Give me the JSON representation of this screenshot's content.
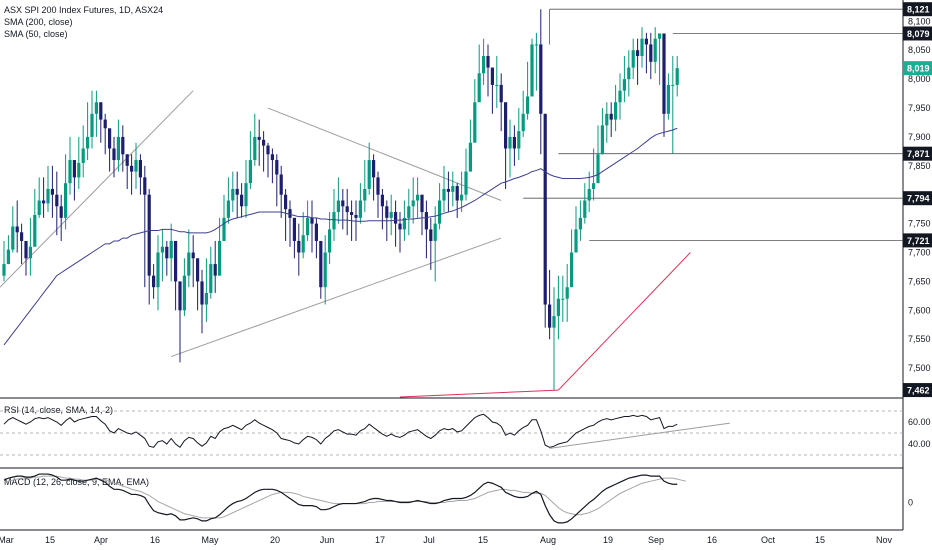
{
  "legend": {
    "title": "ASX SPI 200 Index Futures, 1D, ASX24",
    "sma200": "SMA (200, close)",
    "sma50": "SMA (50, close)",
    "rsi": "RSI (14, close, SMA, 14, 2)",
    "macd": "MACD (12, 26, close, 9, EMA, EMA)"
  },
  "colors": {
    "up": "#089981",
    "down": "#1e1e6e",
    "sma50": "#3f3f8f",
    "sma200": "#e0315a",
    "price_tag": "#22ab94",
    "level_tag": "#131722",
    "axis_line": "#131722",
    "trendline": "#9e9e9e",
    "rsi_line": "#131722",
    "macd_line": "#131722",
    "signal_line": "#a6a6a6"
  },
  "chart_data": {
    "type": "candlestick",
    "main_ylim": [
      7450,
      8130
    ],
    "y_ticks": [
      "8,100",
      "8,050",
      "8,000",
      "7,950",
      "7,900",
      "7,850",
      "7,750",
      "7,700",
      "7,650",
      "7,600",
      "7,550",
      "7,500"
    ],
    "x_ticks": [
      "Mar",
      "15",
      "Apr",
      "16",
      "May",
      "20",
      "Jun",
      "17",
      "Jul",
      "15",
      "Aug",
      "19",
      "Sep",
      "16",
      "Oct",
      "15",
      "Nov"
    ],
    "level_labels": [
      {
        "value": 8121,
        "label": "8,121",
        "kind": "level"
      },
      {
        "value": 8079,
        "label": "8,079",
        "kind": "level"
      },
      {
        "value": 8019,
        "label": "8,019",
        "kind": "price"
      },
      {
        "value": 7871,
        "label": "7,871",
        "kind": "level"
      },
      {
        "value": 7794,
        "label": "7,794",
        "kind": "level"
      },
      {
        "value": 7721,
        "label": "7,721",
        "kind": "level"
      },
      {
        "value": 7462,
        "label": "7,462",
        "kind": "level"
      }
    ],
    "closes": [
      7680,
      7705,
      7745,
      7735,
      7720,
      7690,
      7710,
      7765,
      7790,
      7785,
      7810,
      7800,
      7780,
      7760,
      7820,
      7860,
      7830,
      7855,
      7880,
      7900,
      7940,
      7960,
      7930,
      7915,
      7880,
      7860,
      7900,
      7870,
      7850,
      7840,
      7860,
      7830,
      7800,
      7660,
      7640,
      7700,
      7710,
      7690,
      7720,
      7650,
      7600,
      7660,
      7700,
      7690,
      7650,
      7610,
      7630,
      7680,
      7660,
      7720,
      7760,
      7790,
      7810,
      7800,
      7780,
      7820,
      7860,
      7900,
      7895,
      7885,
      7870,
      7860,
      7835,
      7800,
      7775,
      7760,
      7720,
      7700,
      7730,
      7760,
      7750,
      7720,
      7640,
      7700,
      7740,
      7770,
      7790,
      7780,
      7770,
      7765,
      7760,
      7790,
      7810,
      7860,
      7830,
      7800,
      7780,
      7760,
      7770,
      7750,
      7740,
      7760,
      7780,
      7790,
      7800,
      7770,
      7740,
      7720,
      7750,
      7790,
      7810,
      7805,
      7815,
      7790,
      7800,
      7840,
      7890,
      7960,
      8010,
      8040,
      8020,
      7990,
      7990,
      7960,
      7880,
      7900,
      7880,
      7910,
      7940,
      7970,
      8060,
      8060,
      7940,
      7610,
      7570,
      7590,
      7620,
      7620,
      7640,
      7700,
      7740,
      7760,
      7790,
      7810,
      7820,
      7870,
      7920,
      7940,
      7930,
      7960,
      7980,
      8000,
      8020,
      8050,
      8040,
      8070,
      8060,
      8030,
      8070,
      8079,
      7940,
      7990,
      7990,
      8019
    ],
    "highs": [
      7720,
      7730,
      7780,
      7790,
      7750,
      7720,
      7760,
      7810,
      7830,
      7830,
      7850,
      7850,
      7840,
      7800,
      7870,
      7900,
      7860,
      7900,
      7920,
      7960,
      7980,
      7980,
      7960,
      7940,
      7900,
      7900,
      7930,
      7920,
      7870,
      7870,
      7890,
      7870,
      7850,
      7810,
      7680,
      7730,
      7740,
      7720,
      7750,
      7710,
      7650,
      7690,
      7740,
      7730,
      7690,
      7670,
      7690,
      7710,
      7720,
      7760,
      7800,
      7830,
      7840,
      7840,
      7820,
      7860,
      7910,
      7940,
      7930,
      7910,
      7890,
      7880,
      7870,
      7850,
      7810,
      7790,
      7760,
      7750,
      7770,
      7790,
      7790,
      7760,
      7720,
      7730,
      7770,
      7810,
      7830,
      7810,
      7810,
      7790,
      7790,
      7820,
      7860,
      7890,
      7870,
      7840,
      7810,
      7790,
      7800,
      7790,
      7770,
      7790,
      7810,
      7830,
      7830,
      7800,
      7790,
      7760,
      7780,
      7820,
      7850,
      7840,
      7840,
      7820,
      7840,
      7880,
      7930,
      8000,
      8060,
      8070,
      8060,
      8020,
      8040,
      8010,
      7960,
      7930,
      7920,
      7950,
      7980,
      8030,
      8070,
      8080,
      8121,
      7940,
      7670,
      7640,
      7660,
      7660,
      7680,
      7740,
      7780,
      7790,
      7820,
      7840,
      7880,
      7920,
      7950,
      7960,
      7960,
      7990,
      8010,
      8040,
      8050,
      8070,
      8070,
      8090,
      8080,
      8080,
      8090,
      8079,
      8000,
      8010,
      8040,
      8040
    ],
    "lows": [
      7650,
      7680,
      7700,
      7700,
      7680,
      7660,
      7660,
      7720,
      7760,
      7760,
      7770,
      7760,
      7730,
      7720,
      7740,
      7800,
      7790,
      7810,
      7830,
      7860,
      7880,
      7900,
      7890,
      7870,
      7840,
      7830,
      7840,
      7840,
      7810,
      7800,
      7810,
      7800,
      7640,
      7610,
      7620,
      7600,
      7650,
      7660,
      7650,
      7600,
      7510,
      7590,
      7640,
      7640,
      7600,
      7560,
      7580,
      7620,
      7630,
      7660,
      7720,
      7750,
      7770,
      7760,
      7760,
      7760,
      7810,
      7850,
      7850,
      7840,
      7830,
      7820,
      7780,
      7760,
      7720,
      7710,
      7690,
      7660,
      7690,
      7720,
      7700,
      7690,
      7620,
      7610,
      7680,
      7720,
      7750,
      7740,
      7730,
      7720,
      7720,
      7750,
      7770,
      7800,
      7790,
      7760,
      7740,
      7720,
      7730,
      7710,
      7700,
      7720,
      7730,
      7750,
      7760,
      7730,
      7690,
      7670,
      7650,
      7740,
      7770,
      7770,
      7780,
      7760,
      7770,
      7790,
      7850,
      7920,
      7970,
      7990,
      7970,
      7940,
      7950,
      7910,
      7810,
      7830,
      7850,
      7860,
      7900,
      7930,
      7990,
      7980,
      7870,
      7570,
      7550,
      7462,
      7550,
      7580,
      7580,
      7640,
      7700,
      7720,
      7750,
      7770,
      7790,
      7820,
      7870,
      7890,
      7900,
      7910,
      7930,
      7960,
      7970,
      8000,
      7990,
      8020,
      8010,
      8000,
      8010,
      7990,
      7900,
      7930,
      7871,
      7970
    ],
    "sma50_values": [
      7540,
      7550,
      7560,
      7570,
      7580,
      7590,
      7600,
      7610,
      7620,
      7630,
      7640,
      7650,
      7660,
      7665,
      7670,
      7675,
      7680,
      7685,
      7690,
      7695,
      7700,
      7705,
      7710,
      7715,
      7715,
      7720,
      7720,
      7725,
      7725,
      7730,
      7732,
      7734,
      7736,
      7738,
      7738,
      7738,
      7740,
      7740,
      7740,
      7738,
      7736,
      7736,
      7734,
      7734,
      7734,
      7734,
      7734,
      7736,
      7740,
      7745,
      7750,
      7755,
      7758,
      7760,
      7762,
      7764,
      7766,
      7768,
      7770,
      7770,
      7770,
      7770,
      7770,
      7770,
      7768,
      7766,
      7764,
      7762,
      7762,
      7762,
      7760,
      7760,
      7758,
      7758,
      7757,
      7757,
      7756,
      7756,
      7756,
      7755,
      7754,
      7754,
      7754,
      7755,
      7755,
      7755,
      7755,
      7755,
      7755,
      7756,
      7756,
      7757,
      7758,
      7758,
      7759,
      7760,
      7760,
      7762,
      7763,
      7765,
      7768,
      7770,
      7772,
      7775,
      7778,
      7782,
      7786,
      7790,
      7795,
      7800,
      7805,
      7810,
      7815,
      7820,
      7822,
      7825,
      7828,
      7830,
      7833,
      7836,
      7840,
      7842,
      7845,
      7840,
      7835,
      7832,
      7830,
      7828,
      7828,
      7828,
      7828,
      7828,
      7829,
      7830,
      7832,
      7835,
      7840,
      7845,
      7850,
      7855,
      7860,
      7865,
      7870,
      7875,
      7880,
      7886,
      7892,
      7898,
      7903,
      7906,
      7908,
      7910,
      7912,
      7915
    ],
    "sma200_start": [
      126,
      7462
    ],
    "sma200_end": [
      156,
      7700
    ],
    "rsi_values": [
      58,
      62,
      64,
      62,
      60,
      58,
      60,
      63,
      64,
      63,
      64,
      62,
      60,
      57,
      61,
      64,
      60,
      62,
      63,
      64,
      65,
      65,
      61,
      58,
      52,
      50,
      54,
      52,
      50,
      49,
      51,
      48,
      45,
      38,
      37,
      42,
      43,
      40,
      45,
      40,
      37,
      43,
      46,
      45,
      41,
      38,
      41,
      47,
      45,
      51,
      54,
      55,
      57,
      55,
      53,
      57,
      59,
      62,
      59,
      57,
      55,
      53,
      50,
      45,
      44,
      43,
      41,
      40,
      44,
      47,
      46,
      44,
      40,
      45,
      48,
      52,
      53,
      51,
      49,
      49,
      48,
      52,
      54,
      58,
      55,
      52,
      49,
      47,
      49,
      47,
      46,
      48,
      51,
      52,
      53,
      50,
      47,
      45,
      48,
      52,
      54,
      53,
      54,
      51,
      52,
      56,
      60,
      64,
      66,
      67,
      64,
      60,
      59,
      56,
      48,
      50,
      48,
      52,
      55,
      57,
      62,
      62,
      52,
      39,
      37,
      38,
      40,
      41,
      42,
      46,
      50,
      52,
      54,
      56,
      57,
      60,
      62,
      63,
      62,
      63,
      64,
      65,
      65,
      66,
      65,
      66,
      65,
      62,
      63,
      64,
      54,
      56,
      56,
      58
    ],
    "rsi_bands": [
      70,
      50,
      30
    ],
    "rsi_ticks": [
      "60.00",
      "40.00"
    ],
    "macd_values": [
      22,
      24,
      25,
      26,
      26,
      25,
      25,
      26,
      28,
      28,
      28,
      27,
      25,
      22,
      22,
      23,
      22,
      21,
      21,
      22,
      23,
      24,
      22,
      20,
      16,
      13,
      13,
      12,
      10,
      8,
      8,
      7,
      5,
      -2,
      -8,
      -10,
      -11,
      -12,
      -11,
      -13,
      -17,
      -17,
      -16,
      -15,
      -16,
      -18,
      -18,
      -16,
      -15,
      -12,
      -8,
      -4,
      -1,
      1,
      2,
      4,
      7,
      10,
      12,
      13,
      13,
      13,
      12,
      10,
      7,
      4,
      1,
      -2,
      -3,
      -3,
      -3,
      -4,
      -7,
      -7,
      -6,
      -4,
      -2,
      -1,
      -1,
      -1,
      -1,
      0,
      1,
      3,
      4,
      4,
      3,
      2,
      2,
      1,
      0,
      0,
      0,
      1,
      2,
      1,
      0,
      -1,
      -1,
      0,
      2,
      3,
      4,
      4,
      4,
      5,
      7,
      10,
      14,
      18,
      20,
      19,
      17,
      15,
      10,
      8,
      6,
      5,
      5,
      6,
      9,
      11,
      8,
      -3,
      -12,
      -18,
      -20,
      -20,
      -19,
      -16,
      -12,
      -8,
      -4,
      0,
      3,
      7,
      11,
      14,
      16,
      18,
      20,
      22,
      24,
      25,
      26,
      27,
      27,
      26,
      26,
      26,
      21,
      19,
      18,
      18
    ],
    "signal_values": [
      20,
      21,
      22,
      23,
      24,
      24,
      24,
      25,
      25,
      26,
      26,
      26,
      26,
      25,
      24,
      24,
      23,
      23,
      22,
      22,
      22,
      23,
      23,
      22,
      21,
      19,
      18,
      16,
      15,
      13,
      12,
      11,
      9,
      7,
      4,
      1,
      -1,
      -3,
      -5,
      -7,
      -9,
      -11,
      -12,
      -13,
      -14,
      -15,
      -15,
      -15,
      -15,
      -15,
      -14,
      -12,
      -10,
      -8,
      -6,
      -4,
      -2,
      0,
      2,
      4,
      6,
      8,
      9,
      10,
      10,
      10,
      9,
      8,
      6,
      5,
      4,
      3,
      2,
      1,
      0,
      -1,
      -1,
      -1,
      -1,
      -1,
      -1,
      -1,
      -1,
      0,
      0,
      1,
      1,
      1,
      1,
      1,
      1,
      1,
      1,
      1,
      1,
      1,
      1,
      0,
      0,
      0,
      0,
      1,
      1,
      2,
      2,
      2,
      3,
      4,
      6,
      8,
      10,
      11,
      12,
      13,
      13,
      12,
      12,
      11,
      10,
      10,
      9,
      9,
      9,
      7,
      3,
      -1,
      -5,
      -8,
      -10,
      -11,
      -12,
      -12,
      -11,
      -10,
      -8,
      -6,
      -3,
      0,
      3,
      6,
      9,
      11,
      13,
      15,
      17,
      19,
      20,
      21,
      22,
      23,
      24,
      24,
      24,
      23,
      22,
      21
    ],
    "macd_ticks": [
      "0"
    ]
  }
}
